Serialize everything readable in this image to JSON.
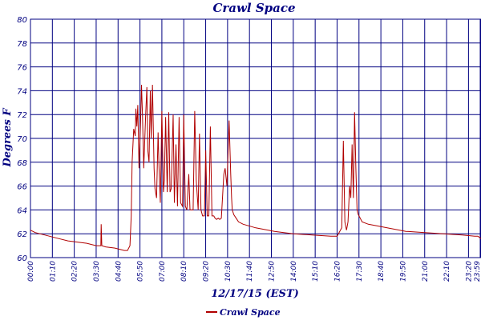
{
  "chart_data": {
    "type": "line",
    "title": "Crawl Space",
    "xlabel": "12/17/15 (EST)",
    "ylabel": "Degrees F",
    "ylim": [
      60,
      80
    ],
    "xlim_minutes": [
      0,
      1440
    ],
    "y_ticks": [
      "60",
      "62",
      "64",
      "66",
      "68",
      "70",
      "72",
      "74",
      "76",
      "78",
      "80"
    ],
    "x_ticks": [
      "00:00",
      "01:10",
      "02:20",
      "03:30",
      "04:40",
      "05:50",
      "07:00",
      "08:10",
      "09:20",
      "10:30",
      "11:40",
      "12:50",
      "14:00",
      "15:10",
      "16:20",
      "17:30",
      "18:40",
      "19:50",
      "21:00",
      "22:10",
      "23:20",
      "23:59"
    ],
    "grid": true,
    "legend_position": "bottom-center",
    "colors": {
      "series": "#b00000",
      "grid": "#000080",
      "text": "#000080"
    },
    "series": [
      {
        "name": "Crawl Space",
        "x": [
          0,
          15,
          30,
          60,
          90,
          120,
          150,
          180,
          210,
          225,
          226,
          228,
          240,
          270,
          300,
          310,
          318,
          322,
          325,
          330,
          335,
          337,
          340,
          343,
          347,
          352,
          355,
          358,
          362,
          368,
          372,
          375,
          379,
          383,
          386,
          390,
          395,
          398,
          403,
          408,
          411,
          415,
          420,
          425,
          428,
          432,
          437,
          442,
          446,
          450,
          456,
          460,
          465,
          470,
          475,
          480,
          486,
          490,
          495,
          500,
          506,
          510,
          515,
          520,
          525,
          530,
          536,
          540,
          545,
          550,
          556,
          560,
          565,
          570,
          575,
          580,
          586,
          590,
          595,
          600,
          605,
          610,
          618,
          622,
          628,
          635,
          640,
          643,
          645,
          650,
          655,
          660,
          665,
          680,
          720,
          780,
          840,
          900,
          960,
          980,
          995,
          1000,
          1005,
          1010,
          1015,
          1020,
          1024,
          1028,
          1032,
          1036,
          1040,
          1044,
          1048,
          1052,
          1060,
          1080,
          1120,
          1160,
          1200,
          1260,
          1320,
          1380,
          1420,
          1430,
          1435,
          1440
        ],
        "values": [
          62.3,
          62.1,
          62.0,
          61.8,
          61.6,
          61.4,
          61.3,
          61.2,
          61.0,
          61.0,
          62.8,
          61.0,
          60.9,
          60.8,
          60.6,
          60.6,
          61.0,
          63.5,
          68.0,
          70.8,
          70.2,
          72.5,
          71.0,
          72.8,
          67.5,
          71.5,
          74.5,
          72.0,
          67.5,
          71.8,
          74.3,
          69.0,
          68.0,
          74.0,
          70.0,
          74.5,
          67.5,
          65.8,
          65.0,
          70.5,
          67.5,
          64.6,
          72.3,
          65.5,
          66.5,
          71.8,
          65.5,
          72.2,
          65.5,
          65.8,
          72.0,
          64.6,
          69.5,
          64.3,
          71.8,
          64.6,
          64.3,
          72.0,
          64.3,
          64.0,
          67.0,
          64.0,
          64.0,
          64.0,
          72.3,
          66.5,
          64.0,
          70.4,
          64.0,
          63.5,
          63.5,
          69.0,
          63.5,
          63.5,
          71.0,
          63.5,
          63.5,
          63.3,
          63.2,
          63.3,
          63.2,
          63.3,
          67.0,
          67.5,
          66.0,
          71.5,
          67.0,
          65.0,
          64.0,
          63.6,
          63.4,
          63.2,
          63.0,
          62.8,
          62.5,
          62.2,
          62.0,
          61.9,
          61.8,
          61.8,
          62.5,
          69.8,
          63.0,
          62.3,
          63.0,
          66.0,
          65.0,
          69.5,
          65.0,
          72.2,
          67.5,
          64.0,
          63.6,
          63.4,
          63.0,
          62.8,
          62.6,
          62.4,
          62.2,
          62.1,
          62.0,
          61.9,
          61.8,
          61.8,
          61.7,
          61.6
        ]
      }
    ]
  }
}
